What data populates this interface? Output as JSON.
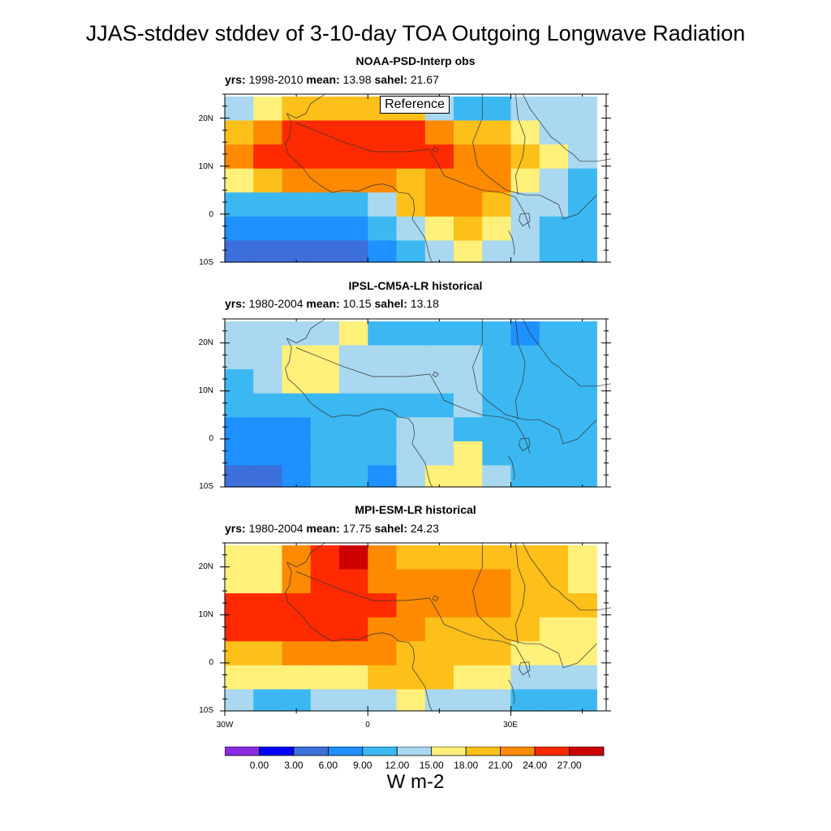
{
  "figure": {
    "title": "JJAS-stddev stddev of 3-10-day TOA Outgoing Longwave Radiation",
    "units": "W m-2",
    "reference_label": "Reference"
  },
  "labels": {
    "yrs": "yrs:",
    "mean": "mean:",
    "sahel": "sahel:"
  },
  "panels": [
    {
      "title": "NOAA-PSD-Interp obs",
      "yrs": "1998-2010",
      "mean": "13.98",
      "sahel": "21.67"
    },
    {
      "title": "IPSL-CM5A-LR historical",
      "yrs": "1980-2004",
      "mean": "10.15",
      "sahel": "13.18"
    },
    {
      "title": "MPI-ESM-LR historical",
      "yrs": "1980-2004",
      "mean": "17.75",
      "sahel": "24.23"
    }
  ],
  "axes": {
    "lat_labels": [
      "20N",
      "10N",
      "0",
      "10S"
    ],
    "lon_labels": [
      "30W",
      "0",
      "30E"
    ],
    "lat_range": [
      -10,
      25
    ],
    "lon_range": [
      -30,
      50
    ]
  },
  "colorbar": {
    "labels": [
      "0.00",
      "3.00",
      "6.00",
      "9.00",
      "12.00",
      "15.00",
      "18.00",
      "21.00",
      "24.00",
      "27.00"
    ],
    "colors": [
      "#8a2be2",
      "#0000ff",
      "#3c6fd9",
      "#1e90ff",
      "#3bb8f2",
      "#a9d8f0",
      "#fff07a",
      "#fdbf1a",
      "#fd8a00",
      "#ff2a00",
      "#cc0000"
    ]
  },
  "chart_data": [
    {
      "type": "heatmap",
      "title": "NOAA-PSD-Interp obs",
      "lat": [
        22,
        17,
        12,
        7,
        2,
        -3,
        -8
      ],
      "lon": [
        -27,
        -21,
        -15,
        -9,
        -3,
        3,
        9,
        15,
        21,
        27,
        33,
        39,
        45
      ],
      "values": [
        [
          13,
          15,
          18,
          18,
          18,
          18,
          18,
          13,
          11,
          10,
          12,
          14,
          14
        ],
        [
          18,
          21,
          24,
          24,
          24,
          24,
          24,
          22,
          20,
          18,
          16,
          14,
          13
        ],
        [
          22,
          24,
          26,
          26,
          24,
          25,
          26,
          24,
          22,
          21,
          19,
          16,
          12
        ],
        [
          17,
          20,
          23,
          23,
          23,
          22,
          18,
          21,
          22,
          21,
          16,
          13,
          11
        ],
        [
          9,
          9,
          9,
          10,
          11,
          14,
          18,
          22,
          22,
          18,
          12,
          12,
          10
        ],
        [
          6,
          6,
          6,
          7,
          8,
          9,
          12,
          17,
          19,
          15,
          12,
          11,
          9
        ],
        [
          4,
          4,
          4,
          4,
          5,
          7,
          9,
          14,
          15,
          14,
          12,
          10,
          10
        ]
      ]
    },
    {
      "type": "heatmap",
      "title": "IPSL-CM5A-LR historical",
      "lat": [
        22,
        17,
        12,
        7,
        2,
        -3,
        -8
      ],
      "lon": [
        -27,
        -21,
        -15,
        -9,
        -3,
        3,
        9,
        15,
        21,
        27,
        33,
        39,
        45
      ],
      "values": [
        [
          13,
          12,
          13,
          13,
          15,
          11,
          10,
          9,
          9,
          9,
          7,
          9,
          10
        ],
        [
          12,
          13,
          15,
          16,
          12,
          13,
          14,
          13,
          12,
          11,
          10,
          9,
          9
        ],
        [
          11,
          12,
          17,
          15,
          13,
          14,
          14,
          12,
          12,
          11,
          10,
          9,
          9
        ],
        [
          9,
          10,
          11,
          11,
          11,
          11,
          9,
          10,
          12,
          11,
          10,
          9,
          9
        ],
        [
          8,
          7,
          8,
          9,
          10,
          11,
          12,
          12,
          10,
          9,
          9,
          9,
          9
        ],
        [
          6,
          6,
          8,
          9,
          10,
          9,
          14,
          13,
          15,
          11,
          9,
          9,
          10
        ],
        [
          5,
          5,
          7,
          9,
          9,
          8,
          14,
          15,
          15,
          12,
          10,
          9,
          10
        ]
      ]
    },
    {
      "type": "heatmap",
      "title": "MPI-ESM-LR historical",
      "lat": [
        22,
        17,
        12,
        7,
        2,
        -3,
        -8
      ],
      "lon": [
        -27,
        -21,
        -15,
        -9,
        -3,
        3,
        9,
        15,
        21,
        27,
        33,
        39,
        45
      ],
      "values": [
        [
          17,
          15,
          21,
          25,
          27,
          22,
          19,
          18,
          18,
          19,
          18,
          20,
          17
        ],
        [
          15,
          15,
          21,
          25,
          24,
          23,
          21,
          22,
          21,
          22,
          20,
          18,
          17
        ],
        [
          24,
          26,
          25,
          25,
          26,
          24,
          23,
          22,
          21,
          21,
          19,
          18,
          19
        ],
        [
          24,
          24,
          24,
          24,
          26,
          22,
          21,
          20,
          20,
          20,
          18,
          17,
          16
        ],
        [
          18,
          20,
          21,
          22,
          22,
          22,
          19,
          20,
          19,
          19,
          16,
          16,
          15
        ],
        [
          15,
          16,
          16,
          16,
          17,
          18,
          20,
          18,
          17,
          15,
          13,
          14,
          12
        ],
        [
          12,
          11,
          11,
          12,
          12,
          14,
          15,
          14,
          12,
          12,
          11,
          11,
          11
        ]
      ]
    }
  ]
}
